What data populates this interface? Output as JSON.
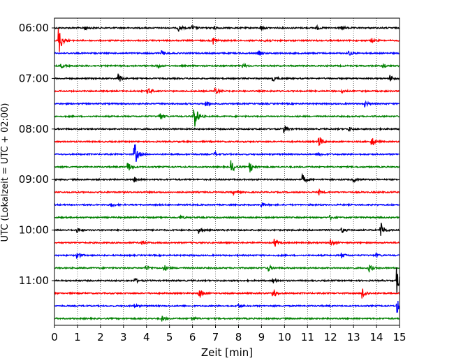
{
  "chart_data": {
    "type": "line",
    "subtype": "helicorder",
    "xlabel": "Zeit  [min]",
    "ylabel": "UTC (Lokalzeit = UTC + 02:00)",
    "xlim": [
      0,
      15
    ],
    "x_ticks": [
      "0",
      "1",
      "2",
      "3",
      "4",
      "5",
      "6",
      "7",
      "8",
      "9",
      "10",
      "11",
      "12",
      "13",
      "14",
      "15"
    ],
    "y_tick_labels": [
      "06:00",
      "07:00",
      "08:00",
      "09:00",
      "10:00",
      "11:00"
    ],
    "grid": "vertical dotted",
    "trace_minutes": 15,
    "colors": [
      "#000000",
      "#ff0000",
      "#0000ff",
      "#008000"
    ],
    "traces": [
      {
        "start": "06:00",
        "color": "#000000",
        "events": [
          [
            1.3,
            0.4
          ],
          [
            5.4,
            0.5
          ],
          [
            6.0,
            0.35
          ],
          [
            6.9,
            0.4
          ],
          [
            9.0,
            0.35
          ],
          [
            11.4,
            0.3
          ],
          [
            12.5,
            0.25
          ]
        ]
      },
      {
        "start": "06:15",
        "color": "#ff0000",
        "events": [
          [
            0.2,
            2.2
          ],
          [
            6.9,
            0.6
          ],
          [
            9.2,
            0.3
          ],
          [
            13.8,
            0.3
          ]
        ]
      },
      {
        "start": "06:30",
        "color": "#0000ff",
        "events": [
          [
            4.7,
            0.3
          ],
          [
            8.9,
            0.3
          ],
          [
            12.8,
            0.4
          ]
        ]
      },
      {
        "start": "06:45",
        "color": "#008000",
        "events": [
          [
            0.3,
            0.3
          ],
          [
            4.5,
            0.3
          ],
          [
            8.2,
            0.3
          ],
          [
            14.3,
            0.3
          ]
        ]
      },
      {
        "start": "07:00",
        "color": "#000000",
        "events": [
          [
            2.8,
            0.8
          ],
          [
            9.5,
            0.4
          ],
          [
            14.6,
            0.5
          ]
        ]
      },
      {
        "start": "07:15",
        "color": "#ff0000",
        "events": [
          [
            4.1,
            0.5
          ],
          [
            7.0,
            0.6
          ],
          [
            12.5,
            0.3
          ]
        ]
      },
      {
        "start": "07:30",
        "color": "#0000ff",
        "events": [
          [
            6.6,
            0.5
          ],
          [
            13.5,
            0.5
          ]
        ]
      },
      {
        "start": "07:45",
        "color": "#008000",
        "events": [
          [
            4.6,
            0.5
          ],
          [
            6.1,
            2.0
          ]
        ]
      },
      {
        "start": "08:00",
        "color": "#000000",
        "events": [
          [
            10.0,
            0.6
          ],
          [
            12.8,
            0.3
          ]
        ]
      },
      {
        "start": "08:15",
        "color": "#ff0000",
        "events": [
          [
            11.5,
            1.0
          ],
          [
            13.8,
            0.8
          ]
        ]
      },
      {
        "start": "08:30",
        "color": "#0000ff",
        "events": [
          [
            3.5,
            1.8
          ],
          [
            7.0,
            0.3
          ],
          [
            11.5,
            0.3
          ]
        ]
      },
      {
        "start": "08:45",
        "color": "#008000",
        "events": [
          [
            3.2,
            0.8
          ],
          [
            7.7,
            1.0
          ],
          [
            8.5,
            0.9
          ]
        ]
      },
      {
        "start": "09:00",
        "color": "#000000",
        "events": [
          [
            3.5,
            0.4
          ],
          [
            10.8,
            0.7
          ],
          [
            13.0,
            0.3
          ]
        ]
      },
      {
        "start": "09:15",
        "color": "#ff0000",
        "events": [
          [
            7.8,
            0.3
          ],
          [
            11.5,
            0.4
          ]
        ]
      },
      {
        "start": "09:30",
        "color": "#0000ff",
        "events": [
          [
            2.5,
            0.3
          ],
          [
            9.0,
            0.3
          ]
        ]
      },
      {
        "start": "09:45",
        "color": "#008000",
        "events": [
          [
            5.5,
            0.3
          ],
          [
            12.0,
            0.3
          ]
        ]
      },
      {
        "start": "10:00",
        "color": "#000000",
        "events": [
          [
            1.0,
            0.4
          ],
          [
            6.3,
            0.5
          ],
          [
            12.5,
            0.4
          ],
          [
            14.2,
            1.2
          ]
        ]
      },
      {
        "start": "10:15",
        "color": "#ff0000",
        "events": [
          [
            9.6,
            0.6
          ],
          [
            12.0,
            0.5
          ],
          [
            3.8,
            0.3
          ]
        ]
      },
      {
        "start": "10:30",
        "color": "#0000ff",
        "events": [
          [
            1.0,
            0.5
          ],
          [
            12.5,
            0.4
          ],
          [
            14.0,
            0.3
          ]
        ]
      },
      {
        "start": "10:45",
        "color": "#008000",
        "events": [
          [
            4.0,
            0.4
          ],
          [
            4.8,
            0.4
          ],
          [
            9.3,
            0.5
          ],
          [
            13.7,
            0.6
          ]
        ]
      },
      {
        "start": "11:00",
        "color": "#000000",
        "events": [
          [
            3.5,
            0.4
          ],
          [
            9.5,
            0.4
          ],
          [
            14.9,
            2.0
          ]
        ]
      },
      {
        "start": "11:15",
        "color": "#ff0000",
        "events": [
          [
            6.3,
            0.8
          ],
          [
            9.5,
            0.8
          ],
          [
            13.4,
            0.9
          ]
        ]
      },
      {
        "start": "11:30",
        "color": "#0000ff",
        "events": [
          [
            3.5,
            0.3
          ],
          [
            8.0,
            0.3
          ],
          [
            14.9,
            1.2
          ]
        ]
      },
      {
        "start": "11:45",
        "color": "#008000",
        "events": [
          [
            4.7,
            0.4
          ],
          [
            6.0,
            0.3
          ]
        ]
      }
    ]
  }
}
